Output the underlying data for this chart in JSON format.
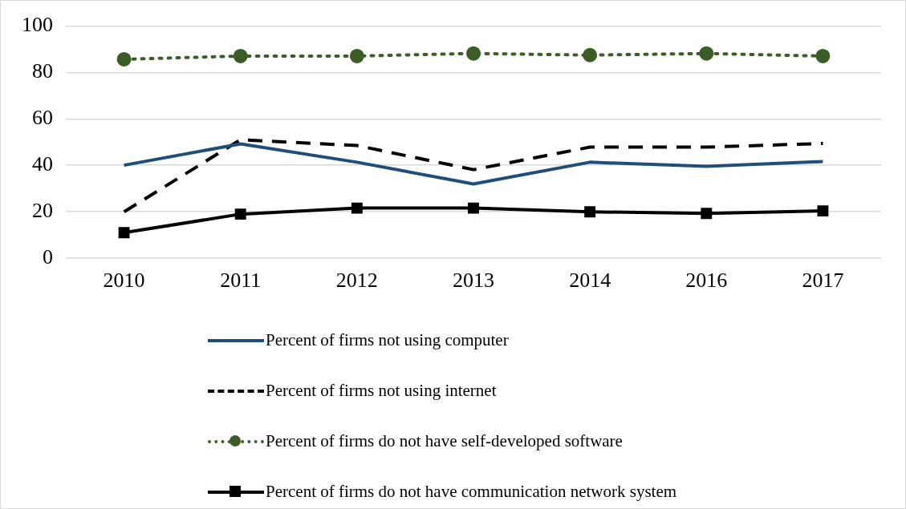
{
  "chart_data": {
    "type": "line",
    "categories": [
      "2010",
      "2011",
      "2012",
      "2013",
      "2014",
      "2016",
      "2017"
    ],
    "series": [
      {
        "name": "Percent of firms not using computer",
        "color": "#1f4e79",
        "line_style": "solid",
        "marker": "none",
        "values": [
          40,
          49.2,
          41.3,
          31.9,
          41.3,
          39.5,
          41.6
        ]
      },
      {
        "name": "Percent of firms not using internet",
        "color": "#000000",
        "line_style": "dashed",
        "marker": "none",
        "values": [
          19.9,
          51,
          48.5,
          38.1,
          47.8,
          47.8,
          49.4
        ]
      },
      {
        "name": "Percent of firms do not have self-developed software",
        "color": "#3b5e26",
        "line_style": "dotted",
        "marker": "circle",
        "values": [
          85.7,
          87.1,
          87.1,
          88.2,
          87.5,
          88.2,
          87.1
        ]
      },
      {
        "name": "Percent of firms do not have communication network system",
        "color": "#000000",
        "line_style": "solid",
        "marker": "square",
        "values": [
          10.9,
          18.9,
          21.5,
          21.5,
          19.9,
          19.2,
          20.3
        ]
      }
    ],
    "ylim": [
      0,
      100
    ],
    "yticks": [
      0,
      20,
      40,
      60,
      80,
      100
    ],
    "grid": "y",
    "legend": "bottom"
  }
}
